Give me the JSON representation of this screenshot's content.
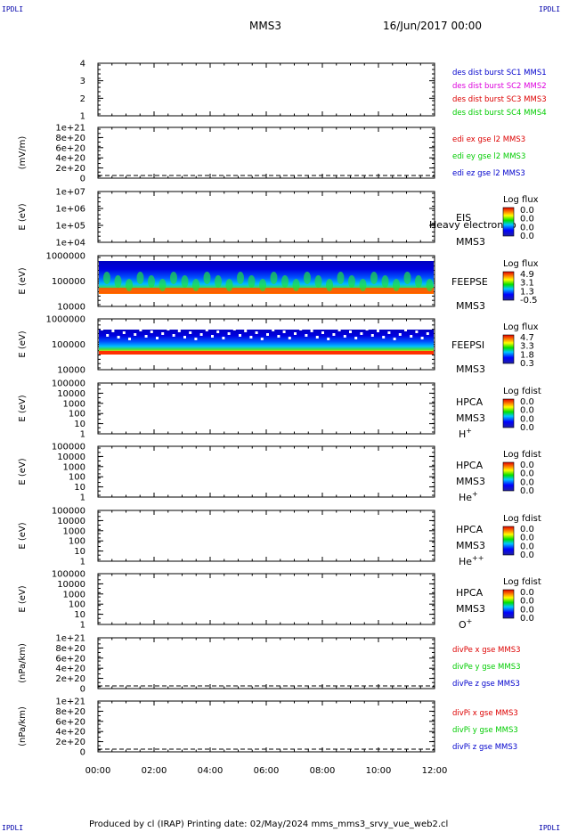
{
  "corner_label": "IPDLI",
  "header": {
    "spacecraft": "MMS3",
    "datetime": "16/Jun/2017 00:00"
  },
  "footer": {
    "text": "Produced by cl (IRAP)   Printing date: 02/May/2024   mms_mms3_srvy_vue_web2.cl"
  },
  "colors": {
    "blue": "#0000cc",
    "magenta": "#dd00dd",
    "red": "#dd0000",
    "green": "#00cc00"
  },
  "chart_data": [
    {
      "type": "line",
      "id": "dist",
      "yticks": [
        "4",
        "3",
        "2",
        "1"
      ],
      "legend": [
        {
          "text": "des dist burst SC1 MMS1",
          "color": "#0000cc"
        },
        {
          "text": "des dist burst SC2 MMS2",
          "color": "#dd00dd"
        },
        {
          "text": "des dist burst SC3 MMS3",
          "color": "#dd0000"
        },
        {
          "text": "des dist burst SC4 MMS4",
          "color": "#00cc00"
        }
      ]
    },
    {
      "type": "line",
      "id": "edi",
      "ylabel": "(mV/m)",
      "yticks": [
        "1e+21",
        "8e+20",
        "6e+20",
        "4e+20",
        "2e+20",
        "0"
      ],
      "legend": [
        {
          "text": "edi ex gse l2 MMS3",
          "color": "#dd0000"
        },
        {
          "text": "edi ey gse l2 MMS3",
          "color": "#00cc00"
        },
        {
          "text": "edi ez gse l2 MMS3",
          "color": "#0000cc"
        }
      ]
    },
    {
      "type": "heatmap",
      "id": "eis",
      "ylabel": "E (eV)",
      "yticks": [
        "1e+07",
        "1e+06",
        "1e+05",
        "1e+04"
      ],
      "labels": [
        "EIS",
        "MMS3"
      ],
      "overlay": "Heavy electron to",
      "cbar_title": "Log flux",
      "cbar_ticks": [
        "0.0",
        "0.0",
        "0.0",
        "0.0"
      ]
    },
    {
      "type": "heatmap",
      "id": "feepse",
      "ylabel": "E (eV)",
      "yticks": [
        "1000000",
        "100000",
        "10000"
      ],
      "labels": [
        "FEEPSE",
        "MMS3"
      ],
      "cbar_title": "Log flux",
      "cbar_ticks": [
        "4.9",
        "3.1",
        "1.3",
        "-0.5"
      ]
    },
    {
      "type": "heatmap",
      "id": "feepsi",
      "ylabel": "E (eV)",
      "yticks": [
        "1000000",
        "100000",
        "10000"
      ],
      "labels": [
        "FEEPSI",
        "MMS3"
      ],
      "cbar_title": "Log flux",
      "cbar_ticks": [
        "4.7",
        "3.3",
        "1.8",
        "0.3"
      ]
    },
    {
      "type": "heatmap",
      "id": "hpca_h",
      "ylabel": "E (eV)",
      "yticks": [
        "100000",
        "10000",
        "1000",
        "100",
        "10",
        "1"
      ],
      "labels": [
        "HPCA",
        "MMS3"
      ],
      "species": "H",
      "charge": "+",
      "cbar_title": "Log fdist",
      "cbar_ticks": [
        "0.0",
        "0.0",
        "0.0",
        "0.0"
      ]
    },
    {
      "type": "heatmap",
      "id": "hpca_he",
      "ylabel": "E (eV)",
      "yticks": [
        "100000",
        "10000",
        "1000",
        "100",
        "10",
        "1"
      ],
      "labels": [
        "HPCA",
        "MMS3"
      ],
      "species": "He",
      "charge": "+",
      "cbar_title": "Log fdist",
      "cbar_ticks": [
        "0.0",
        "0.0",
        "0.0",
        "0.0"
      ]
    },
    {
      "type": "heatmap",
      "id": "hpca_he2",
      "ylabel": "E (eV)",
      "yticks": [
        "100000",
        "10000",
        "1000",
        "100",
        "10",
        "1"
      ],
      "labels": [
        "HPCA",
        "MMS3"
      ],
      "species": "He",
      "charge": "++",
      "cbar_title": "Log fdist",
      "cbar_ticks": [
        "0.0",
        "0.0",
        "0.0",
        "0.0"
      ]
    },
    {
      "type": "heatmap",
      "id": "hpca_o",
      "ylabel": "E (eV)",
      "yticks": [
        "100000",
        "10000",
        "1000",
        "100",
        "10",
        "1"
      ],
      "labels": [
        "HPCA",
        "MMS3"
      ],
      "species": "O",
      "charge": "+",
      "cbar_title": "Log fdist",
      "cbar_ticks": [
        "0.0",
        "0.0",
        "0.0",
        "0.0"
      ]
    },
    {
      "type": "line",
      "id": "divpe",
      "ylabel": "(nPa/km)",
      "yticks": [
        "1e+21",
        "8e+20",
        "6e+20",
        "4e+20",
        "2e+20",
        "0"
      ],
      "legend": [
        {
          "text": "divPe x gse MMS3",
          "color": "#dd0000"
        },
        {
          "text": "divPe y gse MMS3",
          "color": "#00cc00"
        },
        {
          "text": "divPe z gse MMS3",
          "color": "#0000cc"
        }
      ]
    },
    {
      "type": "line",
      "id": "divpi",
      "ylabel": "(nPa/km)",
      "yticks": [
        "1e+21",
        "8e+20",
        "6e+20",
        "4e+20",
        "2e+20",
        "0"
      ],
      "legend": [
        {
          "text": "divPi x gse MMS3",
          "color": "#dd0000"
        },
        {
          "text": "divPi y gse MMS3",
          "color": "#00cc00"
        },
        {
          "text": "divPi z gse MMS3",
          "color": "#0000cc"
        }
      ]
    }
  ],
  "xaxis": {
    "ticks": [
      "00:00",
      "02:00",
      "04:00",
      "06:00",
      "08:00",
      "10:00",
      "12:00"
    ]
  }
}
